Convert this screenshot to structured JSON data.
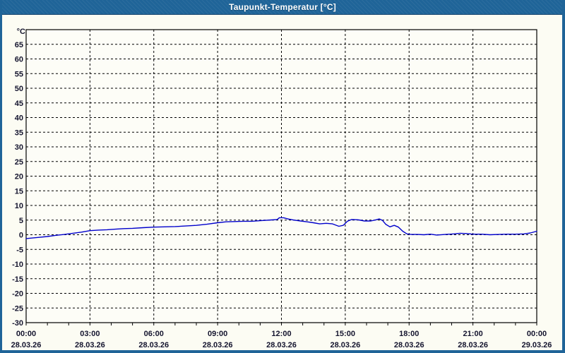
{
  "window": {
    "title": "Taupunkt-Temperatur [°C]"
  },
  "colors": {
    "titlebar_bg": "#1F6498",
    "titlebar_text": "#FFFFFF",
    "window_bg": "#FCFCF3",
    "plot_bg": "#FDFDF7",
    "window_border": "#1F6498",
    "grid": "#000000",
    "axis": "#000000",
    "tick_label": "#14142E",
    "series_line": "#0000CC"
  },
  "chart_data": {
    "type": "line",
    "title": "Taupunkt-Temperatur [°C]",
    "ylabel": "°C",
    "ylim": [
      -30,
      70
    ],
    "y_tick_step": 5,
    "y_ticks": [
      65,
      60,
      55,
      50,
      45,
      40,
      35,
      30,
      25,
      20,
      15,
      10,
      5,
      0,
      -5,
      -10,
      -15,
      -20,
      -25,
      -30
    ],
    "xlim_hours": [
      0,
      24
    ],
    "x_minor_tick_hours": 1,
    "x_major_tick_hours": 3,
    "grid": "dashed",
    "legend": "none",
    "x_ticks": [
      {
        "hour": 0,
        "time": "00:00",
        "date": "28.03.26"
      },
      {
        "hour": 3,
        "time": "03:00",
        "date": "28.03.26"
      },
      {
        "hour": 6,
        "time": "06:00",
        "date": "28.03.26"
      },
      {
        "hour": 9,
        "time": "09:00",
        "date": "28.03.26"
      },
      {
        "hour": 12,
        "time": "12:00",
        "date": "28.03.26"
      },
      {
        "hour": 15,
        "time": "15:00",
        "date": "28.03.26"
      },
      {
        "hour": 18,
        "time": "18:00",
        "date": "28.03.26"
      },
      {
        "hour": 21,
        "time": "21:00",
        "date": "28.03.26"
      },
      {
        "hour": 24,
        "time": "00:00",
        "date": "29.03.26"
      }
    ],
    "series": [
      {
        "name": "Taupunkt-Temperatur",
        "color": "#0000CC",
        "points": [
          [
            0.0,
            -1.3
          ],
          [
            0.3,
            -1.1
          ],
          [
            0.6,
            -0.9
          ],
          [
            1.0,
            -0.6
          ],
          [
            1.4,
            -0.2
          ],
          [
            1.8,
            0.1
          ],
          [
            2.2,
            0.5
          ],
          [
            2.6,
            0.9
          ],
          [
            3.0,
            1.4
          ],
          [
            3.4,
            1.6
          ],
          [
            3.8,
            1.7
          ],
          [
            4.2,
            1.9
          ],
          [
            4.6,
            2.1
          ],
          [
            5.0,
            2.2
          ],
          [
            5.5,
            2.4
          ],
          [
            6.0,
            2.6
          ],
          [
            6.5,
            2.7
          ],
          [
            7.0,
            2.8
          ],
          [
            7.5,
            3.0
          ],
          [
            8.0,
            3.2
          ],
          [
            8.5,
            3.6
          ],
          [
            9.0,
            4.1
          ],
          [
            9.4,
            4.4
          ],
          [
            9.8,
            4.5
          ],
          [
            10.2,
            4.6
          ],
          [
            10.6,
            4.6
          ],
          [
            11.0,
            4.8
          ],
          [
            11.4,
            5.0
          ],
          [
            11.8,
            5.2
          ],
          [
            11.9,
            5.8
          ],
          [
            12.1,
            5.8
          ],
          [
            12.3,
            5.4
          ],
          [
            12.6,
            5.0
          ],
          [
            12.9,
            4.7
          ],
          [
            13.2,
            4.4
          ],
          [
            13.5,
            4.1
          ],
          [
            13.8,
            3.7
          ],
          [
            14.1,
            3.9
          ],
          [
            14.4,
            3.7
          ],
          [
            14.7,
            2.9
          ],
          [
            14.9,
            3.2
          ],
          [
            15.1,
            4.6
          ],
          [
            15.3,
            5.2
          ],
          [
            15.6,
            5.1
          ],
          [
            15.9,
            4.7
          ],
          [
            16.2,
            4.7
          ],
          [
            16.45,
            5.1
          ],
          [
            16.6,
            5.4
          ],
          [
            16.75,
            4.9
          ],
          [
            16.9,
            3.6
          ],
          [
            17.1,
            2.7
          ],
          [
            17.3,
            3.2
          ],
          [
            17.5,
            2.6
          ],
          [
            17.7,
            1.2
          ],
          [
            17.9,
            0.3
          ],
          [
            18.1,
            0.1
          ],
          [
            18.4,
            0.1
          ],
          [
            18.7,
            0.0
          ],
          [
            19.0,
            0.2
          ],
          [
            19.3,
            -0.1
          ],
          [
            19.7,
            0.1
          ],
          [
            20.1,
            0.3
          ],
          [
            20.4,
            0.5
          ],
          [
            20.7,
            0.4
          ],
          [
            21.0,
            0.2
          ],
          [
            21.4,
            0.2
          ],
          [
            21.8,
            0.0
          ],
          [
            22.2,
            0.1
          ],
          [
            22.6,
            0.2
          ],
          [
            23.0,
            0.2
          ],
          [
            23.4,
            0.3
          ],
          [
            23.7,
            0.6
          ],
          [
            24.0,
            1.2
          ]
        ]
      }
    ]
  }
}
